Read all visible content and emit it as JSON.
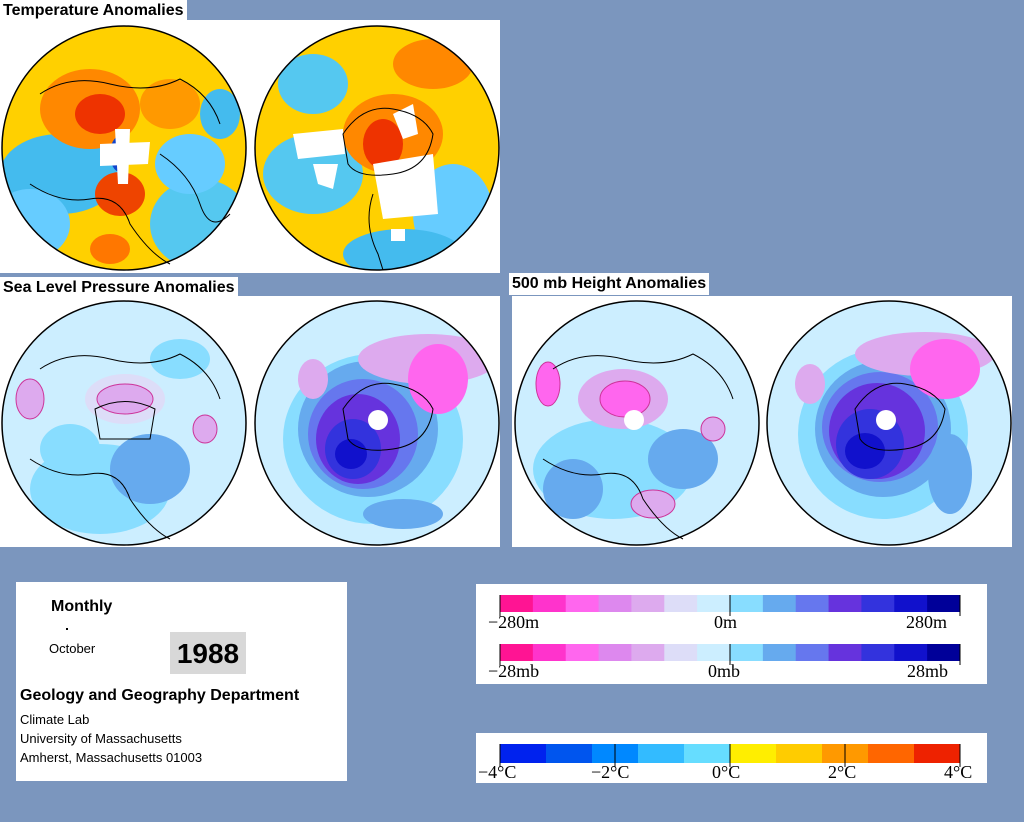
{
  "sections": {
    "temperature_title": "Temperature Anomalies",
    "slp_title": "Sea Level Pressure Anomalies",
    "height_title": "500 mb Height Anomalies"
  },
  "info": {
    "period": "Monthly",
    "month": "October",
    "year": "1988",
    "department": "Geology and Geography Department",
    "lab": "Climate Lab",
    "university": "University of Massachusetts",
    "address": "Amherst, Massachusetts 01003"
  },
  "legends": {
    "height_scale": {
      "left": "−280m",
      "center": "0m",
      "right": "280m"
    },
    "pressure_scale": {
      "left": "−28mb",
      "center": "0mb",
      "right": "28mb"
    },
    "temperature_scale": {
      "labels": [
        "−4°C",
        "−2°C",
        "0°C",
        "2°C",
        "4°C"
      ]
    }
  },
  "colors": {
    "background": "#7b96be",
    "anomaly_scale": [
      "#ff1493",
      "#ff33cc",
      "#ff66ee",
      "#dd88ee",
      "#ddaaee",
      "#ddddf8",
      "#cceeff",
      "#88ddff",
      "#66aaee",
      "#6677ee",
      "#6633dd",
      "#3333dd",
      "#1111cc",
      "#000099"
    ],
    "temperature_scale": [
      "#0022ee",
      "#0055ee",
      "#0088ff",
      "#33bbff",
      "#66ddff",
      "#ffee00",
      "#ffcc00",
      "#ff9900",
      "#ff6600",
      "#ee2200"
    ]
  }
}
